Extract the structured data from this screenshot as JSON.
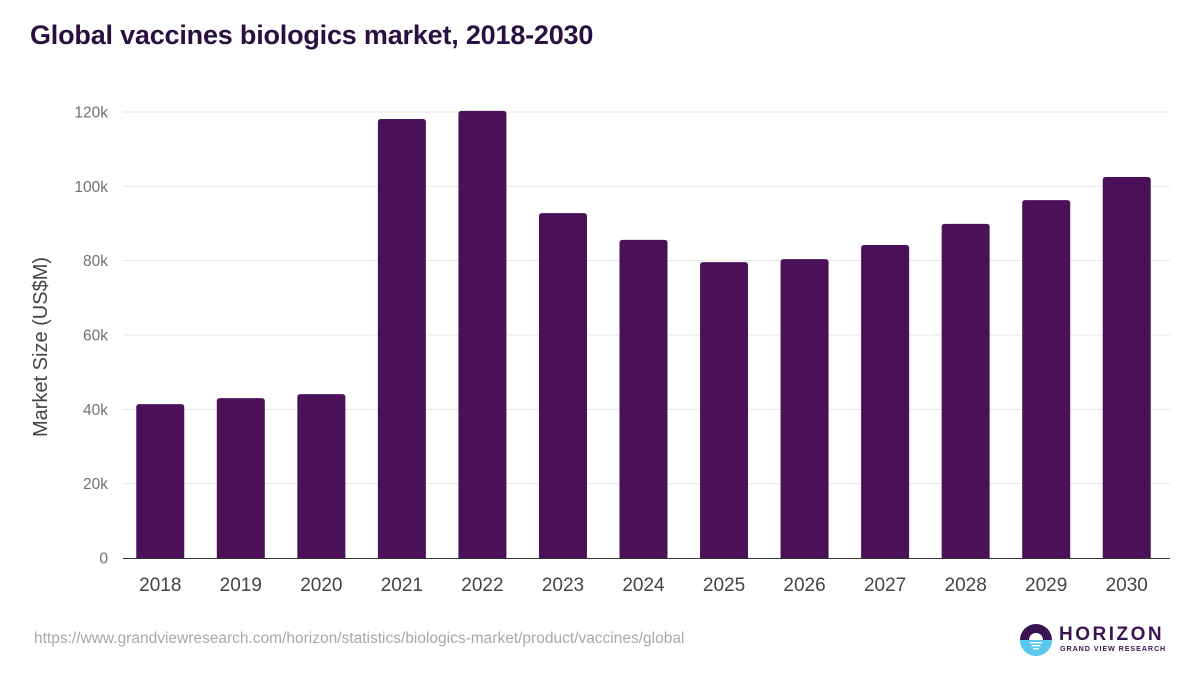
{
  "title": "Global vaccines biologics market, 2018-2030",
  "source_url": "https://www.grandviewresearch.com/horizon/statistics/biologics-market/product/vaccines/global",
  "logo": {
    "name": "HORIZON",
    "subtitle": "GRAND VIEW RESEARCH",
    "icon": "horizon-sun-icon"
  },
  "colors": {
    "bar": "#4b1158",
    "title": "#2a1040",
    "grid": "#e6e6e6",
    "axis": "#333333",
    "tick_label": "#707070",
    "logo_dark": "#3b1551",
    "logo_light": "#5bc8f0"
  },
  "chart_data": {
    "type": "bar",
    "title": "Global vaccines biologics market, 2018-2030",
    "xlabel": "",
    "ylabel": "Market Size (US$M)",
    "categories": [
      "2018",
      "2019",
      "2020",
      "2021",
      "2022",
      "2023",
      "2024",
      "2025",
      "2026",
      "2027",
      "2028",
      "2029",
      "2030"
    ],
    "values": [
      41400,
      43000,
      44100,
      118100,
      120300,
      92800,
      85600,
      79600,
      80400,
      84200,
      89900,
      96300,
      102500
    ],
    "ylim": [
      0,
      120000
    ],
    "yticks": [
      0,
      20000,
      40000,
      60000,
      80000,
      100000,
      120000
    ],
    "ytick_labels": [
      "0",
      "20k",
      "40k",
      "60k",
      "80k",
      "100k",
      "120k"
    ],
    "grid": true,
    "legend": "none"
  }
}
